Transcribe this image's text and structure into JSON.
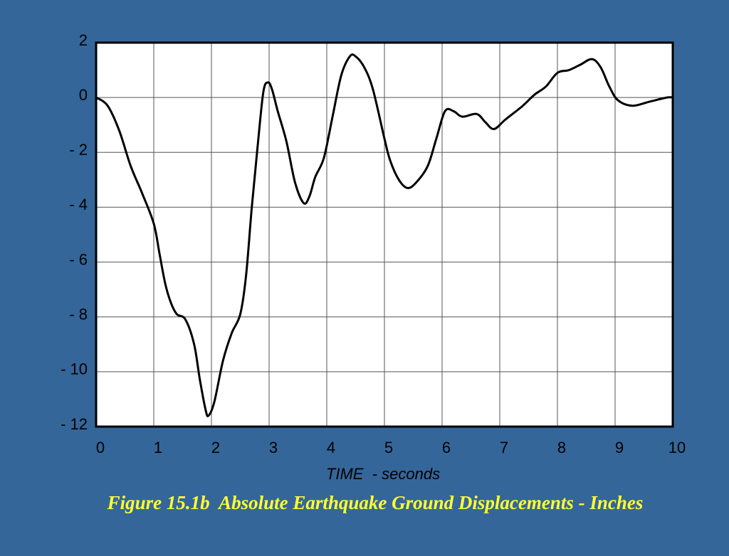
{
  "chart_data": {
    "type": "line",
    "title": "Figure 15.1b  Absolute Earthquake Ground Displacements - Inches",
    "x_label": "TIME  - seconds",
    "xlim": [
      0,
      10
    ],
    "xticks": [
      0,
      1,
      2,
      3,
      4,
      5,
      6,
      7,
      8,
      9,
      10
    ],
    "ylim": [
      -12,
      2
    ],
    "yticks": [
      {
        "value": -12,
        "label": "- 12"
      },
      {
        "value": -10,
        "label": "- 10"
      },
      {
        "value": -8,
        "label": "- 8"
      },
      {
        "value": -6,
        "label": "- 6"
      },
      {
        "value": -4,
        "label": "- 4"
      },
      {
        "value": -2,
        "label": "- 2"
      },
      0,
      2
    ],
    "grid": true,
    "series": [
      {
        "name": null,
        "color": "#000000",
        "x": [
          0,
          0.2,
          0.4,
          0.6,
          0.8,
          1.0,
          1.1,
          1.2,
          1.3,
          1.4,
          1.55,
          1.7,
          1.8,
          1.9,
          1.95,
          2.05,
          2.2,
          2.35,
          2.5,
          2.6,
          2.7,
          2.8,
          2.9,
          2.98,
          3.05,
          3.15,
          3.3,
          3.45,
          3.6,
          3.7,
          3.8,
          3.95,
          4.1,
          4.25,
          4.4,
          4.5,
          4.65,
          4.8,
          5.0,
          5.1,
          5.25,
          5.4,
          5.55,
          5.75,
          5.9,
          6.05,
          6.2,
          6.35,
          6.6,
          6.75,
          6.9,
          7.1,
          7.4,
          7.6,
          7.8,
          8.0,
          8.2,
          8.4,
          8.6,
          8.75,
          8.9,
          9.05,
          9.3,
          9.6,
          9.9,
          10
        ],
        "values": [
          0,
          -0.3,
          -1.2,
          -2.5,
          -3.5,
          -4.6,
          -5.7,
          -6.8,
          -7.5,
          -7.9,
          -8.1,
          -9,
          -10.3,
          -11.4,
          -11.6,
          -11.1,
          -9.6,
          -8.6,
          -7.9,
          -6.5,
          -4,
          -1.8,
          0.2,
          0.55,
          0.3,
          -0.5,
          -1.6,
          -3.1,
          -3.85,
          -3.6,
          -2.9,
          -2.2,
          -0.7,
          0.8,
          1.5,
          1.5,
          1.1,
          0.3,
          -1.5,
          -2.3,
          -3,
          -3.3,
          -3.1,
          -2.5,
          -1.5,
          -0.5,
          -0.5,
          -0.7,
          -0.6,
          -0.9,
          -1.15,
          -0.8,
          -0.3,
          0.1,
          0.4,
          0.9,
          1.0,
          1.2,
          1.4,
          1.1,
          0.4,
          -0.1,
          -0.3,
          -0.15,
          0,
          0
        ]
      }
    ]
  }
}
